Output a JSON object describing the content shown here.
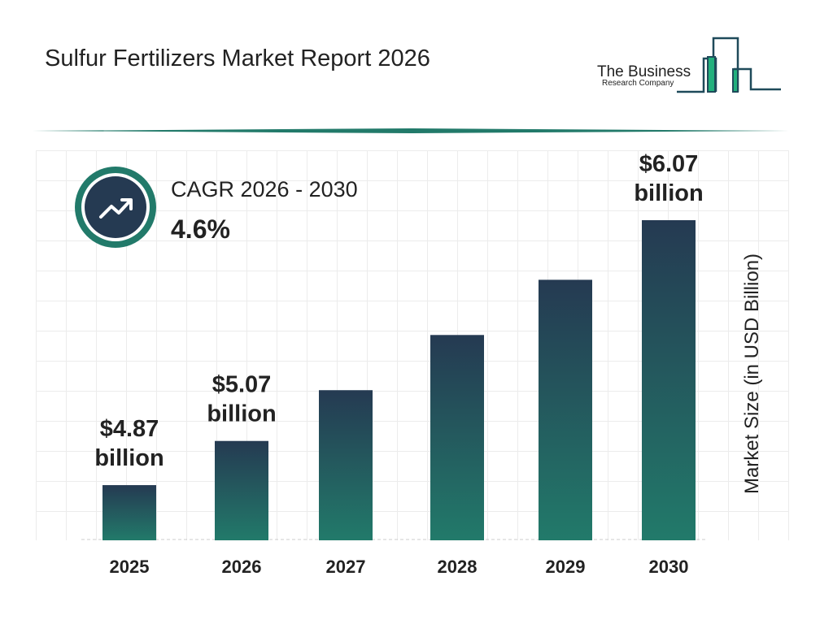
{
  "title": "Sulfur Fertilizers Market Report 2026",
  "logo": {
    "line1": "The Business",
    "line2": "Research Company"
  },
  "cagr": {
    "label": "CAGR 2026 - 2030",
    "value": "4.6%",
    "icon": "trend-up-arrow-icon"
  },
  "colors": {
    "bar_top": "#253a52",
    "bar_bottom": "#227a6a",
    "accent": "#227a6a"
  },
  "chart_data": {
    "type": "bar",
    "categories": [
      "2025",
      "2026",
      "2027",
      "2028",
      "2029",
      "2030"
    ],
    "values": [
      4.87,
      5.07,
      5.3,
      5.55,
      5.8,
      6.07
    ],
    "data_labels": [
      "$4.87 billion",
      "$5.07 billion",
      "",
      "",
      "",
      "$6.07 billion"
    ],
    "ylabel": "Market Size (in USD Billion)",
    "xlabel": "",
    "grid": true
  }
}
